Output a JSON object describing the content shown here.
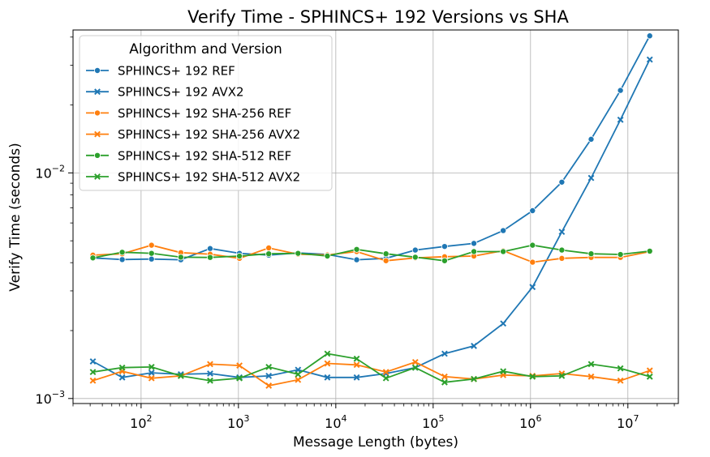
{
  "chart_data": {
    "type": "line",
    "title": "Verify Time - SPHINCS+ 192 Versions vs SHA",
    "xlabel": "Message Length (bytes)",
    "ylabel": "Verify Time (seconds)",
    "x_scale": "log",
    "y_scale": "log",
    "xlim": [
      20,
      33000000
    ],
    "ylim": [
      0.00095,
      0.043
    ],
    "x_ticks": [
      {
        "base": "10",
        "exp": "2",
        "value": 100
      },
      {
        "base": "10",
        "exp": "3",
        "value": 1000
      },
      {
        "base": "10",
        "exp": "4",
        "value": 10000
      },
      {
        "base": "10",
        "exp": "5",
        "value": 100000
      },
      {
        "base": "10",
        "exp": "6",
        "value": 1000000
      },
      {
        "base": "10",
        "exp": "7",
        "value": 10000000
      }
    ],
    "y_ticks": [
      {
        "base": "10",
        "exp": "−3",
        "value": 0.001
      },
      {
        "base": "10",
        "exp": "−2",
        "value": 0.01
      }
    ],
    "grid": true,
    "legend_title": "Algorithm and Version",
    "legend_position": "top-left",
    "x": [
      32,
      64,
      128,
      256,
      512,
      1024,
      2048,
      4096,
      8192,
      16384,
      32768,
      65536,
      131072,
      262144,
      524288,
      1048576,
      2097152,
      4194304,
      8388608,
      16777216
    ],
    "series": [
      {
        "name": "SPHINCS+ 192 REF",
        "color": "#1f77b4",
        "marker": "circle",
        "values": [
          0.0042,
          0.00413,
          0.00415,
          0.00412,
          0.00462,
          0.0044,
          0.00432,
          0.00442,
          0.00435,
          0.00412,
          0.00418,
          0.00455,
          0.00472,
          0.00487,
          0.00555,
          0.0068,
          0.0091,
          0.0141,
          0.0232,
          0.0405
        ]
      },
      {
        "name": "SPHINCS+ 192 AVX2",
        "color": "#1f77b4",
        "marker": "x",
        "values": [
          0.00146,
          0.00124,
          0.0013,
          0.00128,
          0.00129,
          0.00124,
          0.00126,
          0.00134,
          0.00124,
          0.00124,
          0.00129,
          0.00137,
          0.00158,
          0.00171,
          0.00215,
          0.00312,
          0.00548,
          0.0095,
          0.0172,
          0.0318
        ]
      },
      {
        "name": "SPHINCS+ 192 SHA-256 REF",
        "color": "#ff7f0e",
        "marker": "circle",
        "values": [
          0.00432,
          0.00438,
          0.00478,
          0.00443,
          0.00436,
          0.00418,
          0.00465,
          0.00436,
          0.00433,
          0.00448,
          0.00408,
          0.0042,
          0.00425,
          0.00428,
          0.00452,
          0.00402,
          0.00418,
          0.00422,
          0.00422,
          0.00448
        ]
      },
      {
        "name": "SPHINCS+ 192 SHA-256 AVX2",
        "color": "#ff7f0e",
        "marker": "x",
        "values": [
          0.0012,
          0.00132,
          0.00123,
          0.00126,
          0.00142,
          0.0014,
          0.00114,
          0.00121,
          0.00143,
          0.00141,
          0.00131,
          0.00145,
          0.00125,
          0.00122,
          0.00127,
          0.00126,
          0.00129,
          0.00125,
          0.0012,
          0.00133
        ]
      },
      {
        "name": "SPHINCS+ 192 SHA-512 REF",
        "color": "#2ca02c",
        "marker": "circle",
        "values": [
          0.0042,
          0.00445,
          0.0044,
          0.00423,
          0.00422,
          0.00428,
          0.00438,
          0.0044,
          0.00428,
          0.00458,
          0.00438,
          0.00423,
          0.00408,
          0.00448,
          0.00448,
          0.00478,
          0.00455,
          0.00438,
          0.00435,
          0.0045
        ]
      },
      {
        "name": "SPHINCS+ 192 SHA-512 AVX2",
        "color": "#2ca02c",
        "marker": "x",
        "values": [
          0.00131,
          0.00137,
          0.00138,
          0.00126,
          0.0012,
          0.00123,
          0.00138,
          0.00128,
          0.00158,
          0.0015,
          0.00123,
          0.00137,
          0.00118,
          0.00122,
          0.00132,
          0.00125,
          0.00126,
          0.00142,
          0.00136,
          0.00125
        ]
      }
    ]
  }
}
